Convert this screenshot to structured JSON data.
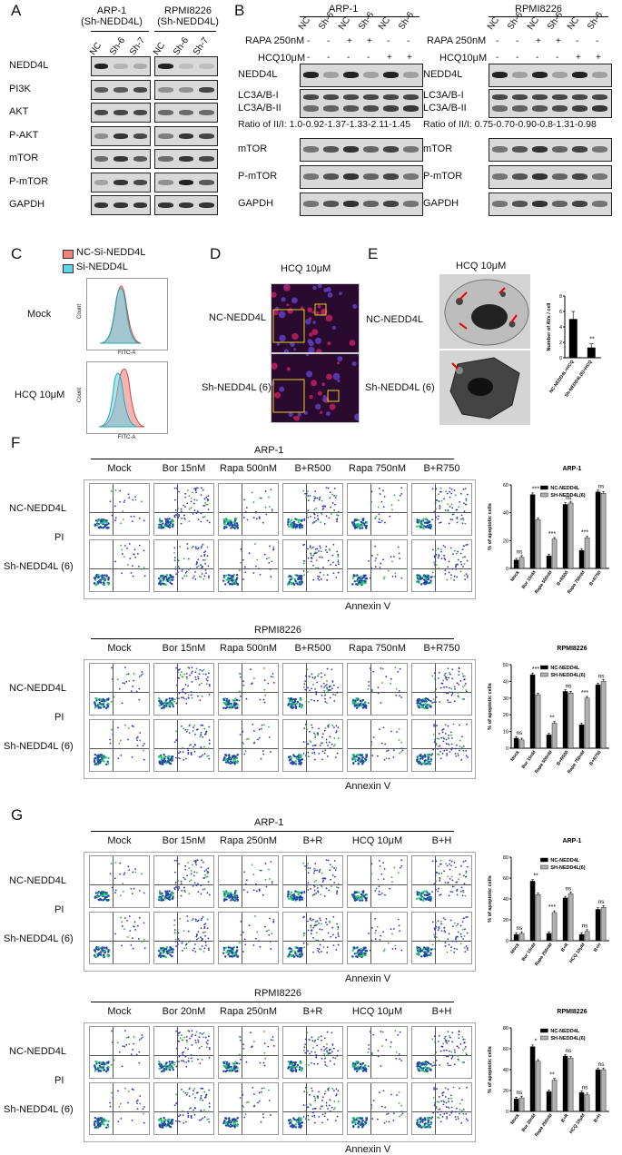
{
  "panelA": {
    "letter": "A",
    "group1": "ARP-1\n(Sh-NEDD4L)",
    "group1_l1": "ARP-1",
    "group1_l2": "(Sh-NEDD4L)",
    "group2_l1": "RPMI8226",
    "group2_l2": "(Sh-NEDD4L)",
    "lanes": [
      "NC",
      "Sh-6",
      "Sh-7"
    ],
    "rows": [
      "NEDD4L",
      "PI3K",
      "AKT",
      "P-AKT",
      "mTOR",
      "P-mTOR",
      "GAPDH"
    ]
  },
  "panelB": {
    "letter": "B",
    "left_title": "ARP-1",
    "right_title": "RPMI8226",
    "lanes": [
      "NC",
      "Sh-6",
      "NC",
      "Sh-6",
      "NC",
      "Sh-6"
    ],
    "rapa_label": "RAPA 250nM",
    "hcq_label": "HCQ10μM",
    "rapa_signs": [
      "-",
      "-",
      "+",
      "+",
      "-",
      "-"
    ],
    "hcq_signs": [
      "-",
      "-",
      "-",
      "-",
      "+",
      "+"
    ],
    "rows_top": [
      "NEDD4L"
    ],
    "lc3_1": "LC3A/B-I",
    "lc3_2": "LC3A/B-II",
    "ratio_left": "Ratio of II/I: 1.0-0.92-1.37-1.33-2.11-1.45",
    "ratio_right": "Ratio of II/I: 0.75-0.70-0.90-0.8-1.31-0.98",
    "rows_bottom": [
      "mTOR",
      "P-mTOR",
      "GAPDH"
    ]
  },
  "panelC": {
    "letter": "C",
    "legend": [
      "NC-Si-NEDD4L",
      "Si-NEDD4L"
    ],
    "legend_colors": [
      "#f08080",
      "#5fd6e8"
    ],
    "rows": [
      "Mock",
      "HCQ 10μM"
    ],
    "xaxis": "FITC-A",
    "yaxis": "Count"
  },
  "panelD": {
    "letter": "D",
    "title": "HCQ 10μM",
    "rows": [
      "NC-NEDD4L",
      "Sh-NEDD4L (6)"
    ]
  },
  "panelE": {
    "letter": "E",
    "title": "HCQ 10μM",
    "rows": [
      "NC-NEDD4L",
      "Sh-NEDD4L (6)"
    ],
    "chart_data": {
      "type": "bar",
      "categories": [
        "NC-NEDD4L+HCQ",
        "Sh-NEDD4L(6)+HCQ"
      ],
      "values": [
        5.0,
        1.3
      ],
      "errors": [
        1.0,
        0.5
      ],
      "ylabel": "Number of AVs / cell",
      "ylim": [
        0,
        8
      ],
      "yticks": [
        "0",
        "2",
        "4",
        "6",
        "8"
      ],
      "annotation": "**"
    }
  },
  "panelF": {
    "letter": "F",
    "top_title": "ARP-1",
    "bottom_title": "RPMI8226",
    "top_cols": [
      "Mock",
      "Bor 15nM",
      "Rapa 500nM",
      "B+R500",
      "Rapa 750nM",
      "B+R750"
    ],
    "bottom_cols": [
      "Mock",
      "Bor 15nM",
      "Rapa 500nM",
      "B+R500",
      "Rapa 750nM",
      "B+R750"
    ],
    "rows": [
      "NC-NEDD4L",
      "Sh-NEDD4L (6)"
    ],
    "pi": "PI",
    "annexin": "Annexin V",
    "chart_data": [
      {
        "type": "bar",
        "title": "ARP-1",
        "categories": [
          "Mock",
          "Bor 15nM",
          "Rapa 500nM",
          "B+R500",
          "Rapa 750nM",
          "B+R750"
        ],
        "series": [
          {
            "name": "NC-NEDD4L",
            "values": [
              6,
              53,
              9,
              46,
              13,
              55
            ]
          },
          {
            "name": "SH-NEDD4L(6)",
            "values": [
              8,
              35,
              21,
              47,
              22,
              54
            ]
          }
        ],
        "ylabel": "% of apoptotic cells",
        "ylim": [
          0,
          60
        ],
        "yticks": [
          "0",
          "20",
          "40",
          "60"
        ],
        "sig": [
          "ns",
          "***",
          "***",
          "ns",
          "***",
          "ns"
        ]
      },
      {
        "type": "bar",
        "title": "RPMI8226",
        "categories": [
          "Mock",
          "Bor 15nM",
          "Rapa 500nM",
          "B+R500",
          "Rapa 750nM",
          "B+R750"
        ],
        "series": [
          {
            "name": "NC-NEDD4L",
            "values": [
              6,
              44,
              8,
              34,
              14,
              38
            ]
          },
          {
            "name": "SH-NEDD4L(6)",
            "values": [
              5,
              32,
              15,
              33,
              30,
              40
            ]
          }
        ],
        "ylabel": "% of apoptotic cells",
        "ylim": [
          0,
          50
        ],
        "yticks": [
          "0",
          "10",
          "20",
          "30",
          "40",
          "50"
        ],
        "sig": [
          "ns",
          "***",
          "**",
          "ns",
          "***",
          "ns"
        ]
      }
    ]
  },
  "panelG": {
    "letter": "G",
    "top_title": "ARP-1",
    "bottom_title": "RPMI8226",
    "top_cols": [
      "Mock",
      "Bor 15nM",
      "Rapa 250nM",
      "B+R",
      "HCQ 10μM",
      "B+H"
    ],
    "bottom_cols": [
      "Mock",
      "Bor 20nM",
      "Rapa 250nM",
      "B+R",
      "HCQ 10μM",
      "B+H"
    ],
    "rows": [
      "NC-NEDD4L",
      "Sh-NEDD4L (6)"
    ],
    "pi": "PI",
    "annexin": "Annexin V",
    "chart_data": [
      {
        "type": "bar",
        "title": "ARP-1",
        "categories": [
          "Mock",
          "Bor 15nM",
          "Rapa 250nM",
          "B+R",
          "HCQ 10μM",
          "B+H"
        ],
        "series": [
          {
            "name": "NC-NEDD4L",
            "values": [
              6,
              57,
              7,
              41,
              6,
              30
            ]
          },
          {
            "name": "SH-NEDD4L(6)",
            "values": [
              7,
              44,
              27,
              45,
              9,
              32
            ]
          }
        ],
        "ylabel": "% of apoptotic cells",
        "ylim": [
          0,
          80
        ],
        "yticks": [
          "0",
          "20",
          "40",
          "60",
          "80"
        ],
        "sig": [
          "ns",
          "**",
          "***",
          "ns",
          "ns",
          "ns"
        ]
      },
      {
        "type": "bar",
        "title": "RPMI8226",
        "categories": [
          "Mock",
          "Bor 20nM",
          "Rapa 250nM",
          "B+R",
          "HCQ 10μM",
          "B+H"
        ],
        "series": [
          {
            "name": "NC-NEDD4L",
            "values": [
              12,
              62,
              19,
              53,
              18,
              40
            ]
          },
          {
            "name": "SH-NEDD4L(6)",
            "values": [
              13,
              48,
              30,
              51,
              16,
              40
            ]
          }
        ],
        "ylabel": "% of apoptotic cells",
        "ylim": [
          0,
          80
        ],
        "yticks": [
          "0",
          "20",
          "40",
          "60",
          "80"
        ],
        "sig": [
          "ns",
          "*",
          "**",
          "ns",
          "ns",
          "ns"
        ]
      }
    ]
  }
}
